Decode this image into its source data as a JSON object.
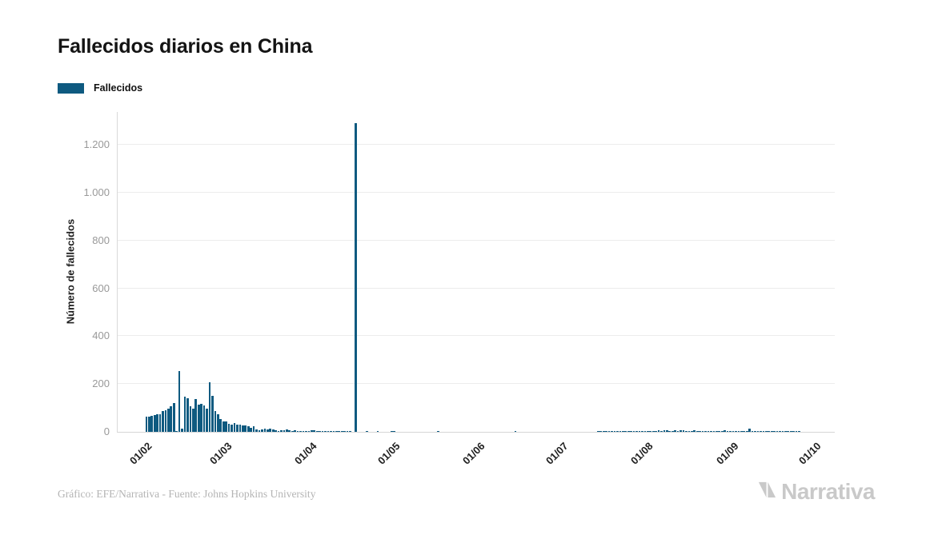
{
  "header": {
    "title": "Fallecidos diarios en China"
  },
  "legend": {
    "items": [
      {
        "label": "Fallecidos",
        "color": "#0e5a80"
      }
    ]
  },
  "chart_data": {
    "type": "bar",
    "title": "Fallecidos diarios en China",
    "xlabel": "",
    "ylabel": "Número de fallecidos",
    "grid": true,
    "legend_position": "top-left",
    "x_axis": {
      "unit": "day",
      "tick_labels": [
        "01/02",
        "01/03",
        "01/04",
        "01/05",
        "01/06",
        "01/07",
        "01/08",
        "01/09",
        "01/10"
      ],
      "tick_day_offsets": [
        0,
        29,
        60,
        90,
        121,
        151,
        182,
        213,
        243
      ]
    },
    "y_axis": {
      "tick_labels": [
        "0",
        "200",
        "400",
        "600",
        "800",
        "1.000",
        "1.200"
      ],
      "tick_values": [
        0,
        200,
        400,
        600,
        800,
        1000,
        1200
      ],
      "range": [
        0,
        1338
      ]
    },
    "series": [
      {
        "name": "Fallecidos",
        "color": "#0e5a80",
        "first_day": "01/02",
        "interval": "daily",
        "values": [
          65,
          64,
          66,
          70,
          73,
          75,
          86,
          89,
          97,
          108,
          120,
          5,
          254,
          13,
          146,
          142,
          106,
          98,
          136,
          115,
          118,
          109,
          97,
          208,
          150,
          88,
          75,
          52,
          45,
          42,
          35,
          31,
          38,
          31,
          30,
          28,
          27,
          22,
          17,
          22,
          11,
          7,
          11,
          13,
          10,
          13,
          11,
          8,
          3,
          7,
          6,
          10,
          7,
          4,
          6,
          5,
          3,
          5,
          4,
          2,
          7,
          6,
          4,
          4,
          3,
          2,
          2,
          2,
          1,
          3,
          2,
          1,
          1,
          1,
          1,
          0,
          1290,
          0,
          0,
          0,
          1,
          0,
          0,
          0,
          1,
          0,
          0,
          0,
          0,
          1,
          1,
          0,
          0,
          0,
          0,
          0,
          0,
          0,
          0,
          0,
          0,
          0,
          0,
          0,
          0,
          0,
          1,
          0,
          0,
          0,
          0,
          0,
          0,
          0,
          0,
          0,
          0,
          0,
          0,
          0,
          0,
          0,
          0,
          0,
          0,
          0,
          0,
          0,
          0,
          0,
          0,
          0,
          0,
          0,
          1,
          0,
          0,
          0,
          0,
          0,
          0,
          0,
          0,
          0,
          0,
          0,
          0,
          0,
          0,
          0,
          0,
          0,
          0,
          0,
          0,
          0,
          0,
          0,
          0,
          0,
          0,
          0,
          0,
          0,
          1,
          1,
          1,
          1,
          1,
          2,
          1,
          1,
          2,
          2,
          3,
          2,
          3,
          2,
          3,
          4,
          5,
          3,
          4,
          5,
          4,
          5,
          6,
          5,
          6,
          7,
          4,
          5,
          6,
          5,
          6,
          8,
          5,
          4,
          5,
          6,
          5,
          4,
          3,
          4,
          3,
          3,
          2,
          3,
          2,
          5,
          6,
          2,
          2,
          2,
          1,
          2,
          1,
          2,
          1,
          13,
          5,
          1,
          1,
          1,
          1,
          1,
          1,
          1,
          1,
          1,
          1,
          1,
          1,
          1,
          1,
          1,
          1,
          1,
          0,
          0,
          0,
          0,
          0,
          0
        ]
      }
    ]
  },
  "footer": {
    "credit": "Gráfico: EFE/Narrativa - Fuente: Johns Hopkins University",
    "brand": "Narrativa"
  },
  "colors": {
    "bar": "#0e5a80",
    "gridline": "#ececec",
    "axis_line": "#dadada",
    "y_tick_text": "#999999",
    "x_tick_text": "#1f1f1f",
    "title_text": "#141414",
    "credit_text": "#b4b4b4",
    "brand_text": "#c9c9c9"
  }
}
